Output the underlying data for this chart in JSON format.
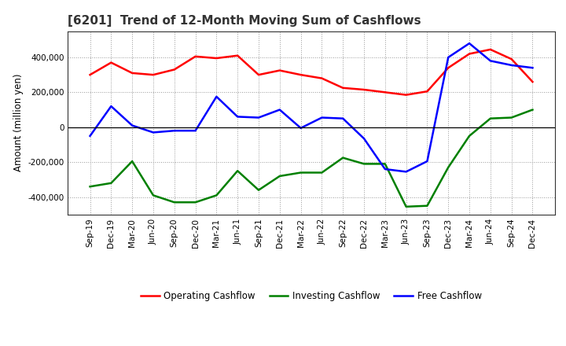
{
  "title": "[6201]  Trend of 12-Month Moving Sum of Cashflows",
  "ylabel": "Amount (million yen)",
  "xlabels": [
    "Sep-19",
    "Dec-19",
    "Mar-20",
    "Jun-20",
    "Sep-20",
    "Dec-20",
    "Mar-21",
    "Jun-21",
    "Sep-21",
    "Dec-21",
    "Mar-22",
    "Jun-22",
    "Sep-22",
    "Dec-22",
    "Mar-23",
    "Jun-23",
    "Sep-23",
    "Dec-23",
    "Mar-24",
    "Jun-24",
    "Sep-24",
    "Dec-24"
  ],
  "operating_cashflow": [
    300000,
    370000,
    310000,
    300000,
    330000,
    405000,
    395000,
    410000,
    300000,
    325000,
    300000,
    280000,
    225000,
    215000,
    200000,
    185000,
    205000,
    340000,
    420000,
    445000,
    390000,
    260000
  ],
  "investing_cashflow": [
    -340000,
    -320000,
    -195000,
    -390000,
    -430000,
    -430000,
    -390000,
    -250000,
    -360000,
    -280000,
    -260000,
    -260000,
    -175000,
    -210000,
    -210000,
    -455000,
    -450000,
    -230000,
    -50000,
    50000,
    55000,
    100000
  ],
  "free_cashflow": [
    -50000,
    120000,
    10000,
    -30000,
    -20000,
    -20000,
    175000,
    60000,
    55000,
    100000,
    -5000,
    55000,
    50000,
    -65000,
    -240000,
    -255000,
    -195000,
    400000,
    480000,
    380000,
    355000,
    340000
  ],
  "operating_color": "#ff0000",
  "investing_color": "#008000",
  "free_color": "#0000ff",
  "ylim": [
    -500000,
    550000
  ],
  "yticks": [
    -400000,
    -200000,
    0,
    200000,
    400000
  ],
  "background_color": "#ffffff",
  "grid_color": "#999999"
}
